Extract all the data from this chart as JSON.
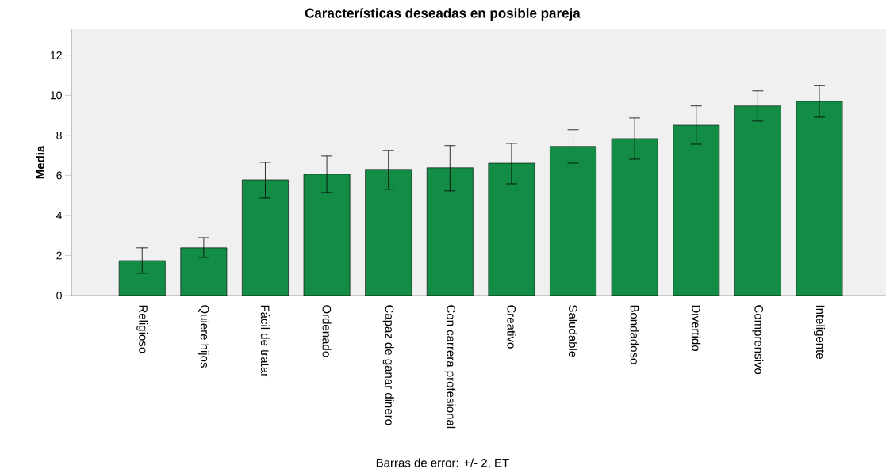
{
  "chart_data": {
    "type": "bar",
    "title": "Características deseadas en posible pareja",
    "ylabel": "Media",
    "categories": [
      "Religioso",
      "Quiere hijos",
      "Fácil de tratar",
      "Ordenado",
      "Capaz de ganar dinero",
      "Con carrera profesional",
      "Creativo",
      "Saludable",
      "Bondadoso",
      "Divertido",
      "Comprensivo",
      "Inteligente"
    ],
    "values": [
      1.74,
      2.38,
      5.78,
      6.06,
      6.3,
      6.38,
      6.61,
      7.45,
      7.84,
      8.51,
      9.47,
      9.7
    ],
    "errors": [
      [
        1.11,
        2.38
      ],
      [
        1.9,
        2.89
      ],
      [
        4.87,
        6.65
      ],
      [
        5.15,
        6.97
      ],
      [
        5.31,
        7.25
      ],
      [
        5.23,
        7.49
      ],
      [
        5.58,
        7.6
      ],
      [
        6.61,
        8.28
      ],
      [
        6.81,
        8.87
      ],
      [
        7.56,
        9.47
      ],
      [
        8.71,
        10.22
      ],
      [
        8.91,
        10.5
      ]
    ],
    "color": "#138c45",
    "ylim": [
      0,
      13.3
    ],
    "yticks": [
      0,
      2,
      4,
      6,
      8,
      10,
      12
    ],
    "annotations": [
      "Barras de error: +/- 2, ET"
    ]
  }
}
